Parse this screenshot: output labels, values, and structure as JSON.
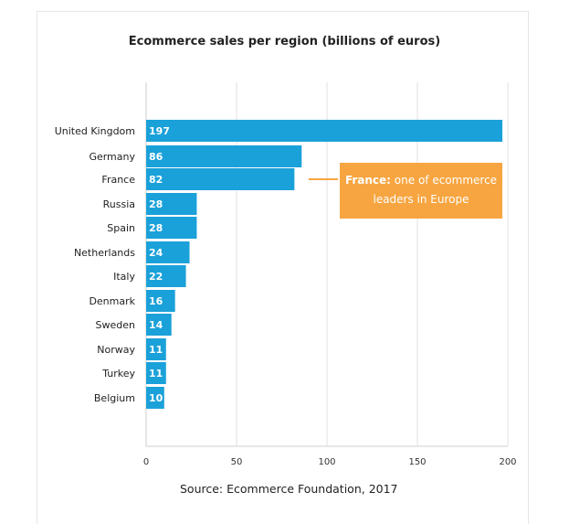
{
  "chart_data": {
    "type": "bar",
    "orientation": "horizontal",
    "title": "Ecommerce sales per region (billions of euros)",
    "categories": [
      "United Kingdom",
      "Germany",
      "France",
      "Russia",
      "Spain",
      "Netherlands",
      "Italy",
      "Denmark",
      "Sweden",
      "Norway",
      "Turkey",
      "Belgium"
    ],
    "values": [
      197,
      86,
      82,
      28,
      28,
      24,
      22,
      16,
      14,
      11,
      11,
      10
    ],
    "xlim": [
      0,
      200
    ],
    "xticks": [
      "0",
      "50",
      "100",
      "150",
      "200"
    ],
    "grid": true,
    "bar_color": "#1ba1d9",
    "annotation": {
      "bold": "France:",
      "text": " one of ecommerce leaders in Europe",
      "color": "#f7a540"
    },
    "source": "Source: Ecommerce Foundation, 2017"
  }
}
